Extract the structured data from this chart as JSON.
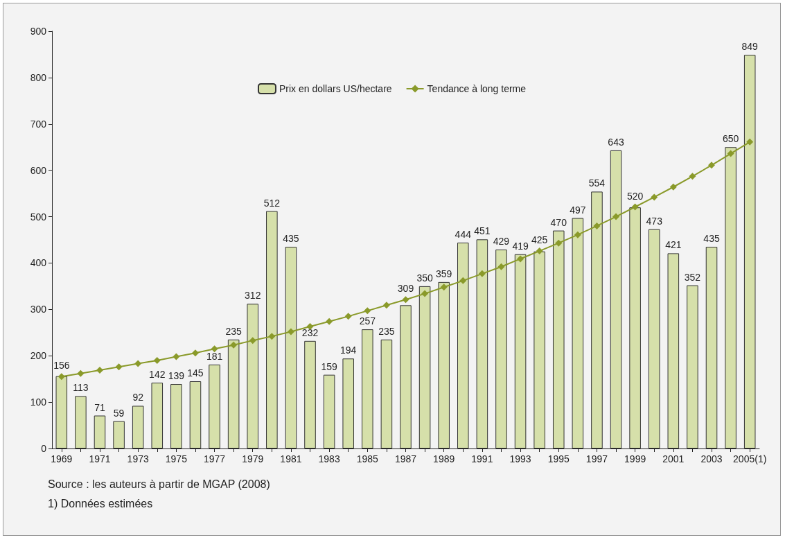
{
  "chart_data": {
    "type": "bar",
    "categories": [
      "1969",
      null,
      "1971",
      null,
      "1973",
      null,
      "1975",
      null,
      "1977",
      null,
      "1979",
      null,
      "1981",
      null,
      "1983",
      null,
      "1985",
      null,
      "1987",
      null,
      "1989",
      null,
      "1991",
      null,
      "1993",
      null,
      "1995",
      null,
      "1997",
      null,
      "1999",
      null,
      "2001",
      null,
      "2003",
      null,
      "2005(1)"
    ],
    "series": [
      {
        "name": "Prix en dollars US/hectare",
        "color": "#d6e0aa",
        "values": [
          156,
          113,
          71,
          59,
          92,
          142,
          139,
          145,
          181,
          235,
          312,
          512,
          435,
          232,
          159,
          194,
          257,
          235,
          309,
          350,
          359,
          444,
          451,
          429,
          419,
          425,
          470,
          497,
          554,
          643,
          520,
          473,
          421,
          352,
          435,
          650,
          849
        ],
        "value_labels": [
          "156",
          "113",
          "71",
          "59",
          "92",
          "142",
          "139",
          "145",
          "181",
          "235",
          "312",
          "512",
          "435",
          "232",
          "159",
          "194",
          "257",
          "235",
          "309",
          "350",
          "359",
          "444",
          "451",
          "429",
          "419",
          "425",
          "470",
          "497",
          "554",
          "643",
          "520",
          "473",
          "421",
          "352",
          "435",
          "650",
          "849"
        ]
      },
      {
        "name": "Tendance à long terme",
        "type": "line",
        "color": "#8a9a2a",
        "marker": "diamond",
        "values": [
          155,
          162,
          169,
          176,
          183,
          190,
          198,
          206,
          215,
          223,
          233,
          242,
          252,
          263,
          274,
          285,
          297,
          309,
          321,
          334,
          348,
          362,
          377,
          392,
          409,
          426,
          443,
          461,
          480,
          500,
          521,
          542,
          564,
          587,
          611,
          636,
          661
        ]
      }
    ],
    "ylim": [
      0,
      900
    ],
    "yticks": [
      0,
      100,
      200,
      300,
      400,
      500,
      600,
      700,
      800,
      900
    ],
    "grid": false,
    "legend": "top",
    "annotations": [
      "Source : les auteurs à partir de MGAP (2008)",
      "1) Données estimées"
    ]
  }
}
